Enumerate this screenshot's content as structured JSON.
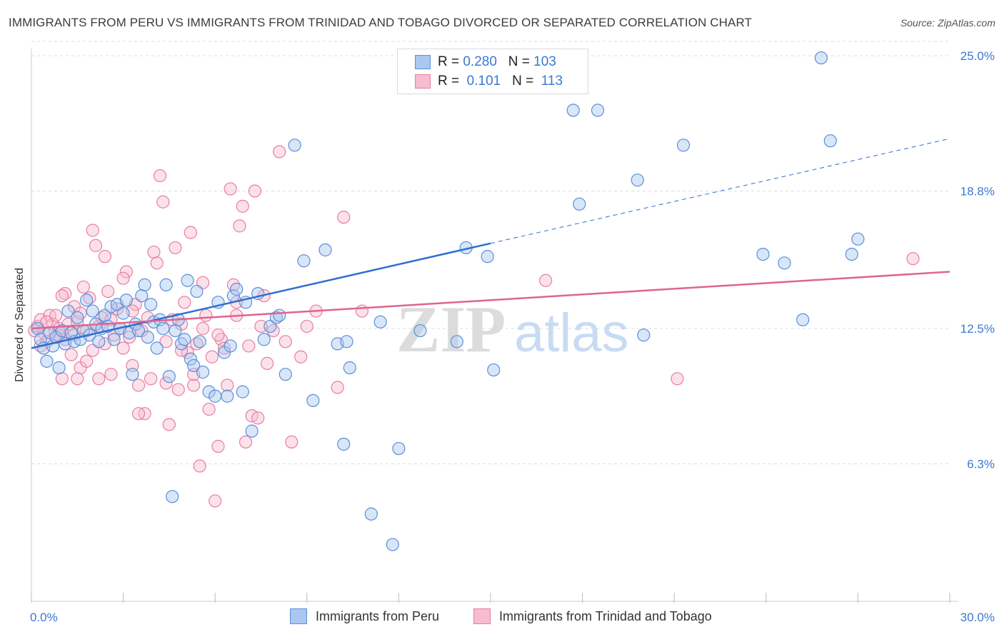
{
  "title": "IMMIGRANTS FROM PERU VS IMMIGRANTS FROM TRINIDAD AND TOBAGO DIVORCED OR SEPARATED CORRELATION CHART",
  "source": "Source: ZipAtlas.com",
  "watermark": {
    "zip": "ZIP",
    "atlas": "atlas"
  },
  "legend": {
    "rows": [
      {
        "r_label": "R =",
        "r_value": "0.280",
        "n_label": "N =",
        "n_value": "103",
        "color": "#a9c8f0",
        "border": "#5b8fd8"
      },
      {
        "r_label": "R =",
        "r_value": "0.101",
        "n_label": "N =",
        "n_value": "113",
        "color": "#f7bcd0",
        "border": "#e87da3"
      }
    ]
  },
  "bottom_legend": [
    {
      "label": "Immigrants from Peru",
      "color": "#a9c8f0",
      "border": "#5b8fd8"
    },
    {
      "label": "Immigrants from Trinidad and Tobago",
      "color": "#f7bcd0",
      "border": "#e87da3"
    }
  ],
  "chart_data": {
    "type": "scatter",
    "title": "IMMIGRANTS FROM PERU VS IMMIGRANTS FROM TRINIDAD AND TOBAGO DIVORCED OR SEPARATED CORRELATION CHART",
    "xlabel": "",
    "ylabel": "Divorced or Separated",
    "xlim": [
      0,
      30
    ],
    "ylim": [
      0,
      25
    ],
    "x_tick_labels": [
      "0.0%",
      "30.0%"
    ],
    "y_tick_labels": [
      "25.0%",
      "18.8%",
      "12.5%",
      "6.3%"
    ],
    "y_ticks": [
      25.0,
      18.8,
      12.5,
      6.3
    ],
    "grid": true,
    "series": [
      {
        "name": "Immigrants from Peru",
        "color": "#5b8fd8",
        "fill": "#a9c8f0",
        "trend": {
          "x0": 0,
          "y0": 11.6,
          "x1": 15,
          "y1": 16.4,
          "dash_x1": 30,
          "dash_y1": 21.2,
          "color": "#2f6fce"
        },
        "points": [
          [
            0.2,
            12.5
          ],
          [
            0.3,
            12.0
          ],
          [
            0.4,
            11.6
          ],
          [
            0.5,
            11.0
          ],
          [
            0.6,
            12.3
          ],
          [
            0.7,
            11.7
          ],
          [
            0.8,
            12.1
          ],
          [
            0.9,
            10.7
          ],
          [
            1.0,
            12.4
          ],
          [
            1.1,
            11.8
          ],
          [
            1.2,
            13.3
          ],
          [
            1.3,
            12.3
          ],
          [
            1.4,
            11.9
          ],
          [
            1.5,
            13.0
          ],
          [
            1.6,
            12.0
          ],
          [
            1.7,
            12.4
          ],
          [
            1.8,
            13.8
          ],
          [
            1.9,
            12.2
          ],
          [
            2.0,
            13.3
          ],
          [
            2.1,
            12.7
          ],
          [
            2.2,
            11.9
          ],
          [
            2.3,
            12.5
          ],
          [
            2.4,
            13.1
          ],
          [
            2.5,
            12.6
          ],
          [
            2.6,
            13.5
          ],
          [
            2.7,
            12.0
          ],
          [
            2.8,
            13.6
          ],
          [
            2.9,
            12.5
          ],
          [
            3.0,
            13.2
          ],
          [
            3.1,
            13.8
          ],
          [
            3.2,
            12.3
          ],
          [
            3.3,
            10.4
          ],
          [
            3.4,
            12.7
          ],
          [
            3.5,
            12.4
          ],
          [
            3.6,
            14.0
          ],
          [
            3.7,
            14.5
          ],
          [
            3.8,
            12.1
          ],
          [
            3.9,
            13.6
          ],
          [
            4.0,
            12.8
          ],
          [
            4.1,
            11.6
          ],
          [
            4.2,
            12.9
          ],
          [
            4.3,
            12.5
          ],
          [
            4.4,
            14.5
          ],
          [
            4.5,
            10.3
          ],
          [
            4.6,
            4.8
          ],
          [
            4.7,
            12.4
          ],
          [
            4.8,
            12.9
          ],
          [
            4.9,
            11.8
          ],
          [
            5.0,
            12.0
          ],
          [
            5.1,
            14.7
          ],
          [
            5.2,
            11.1
          ],
          [
            5.3,
            10.8
          ],
          [
            5.4,
            14.2
          ],
          [
            5.5,
            11.9
          ],
          [
            5.6,
            10.5
          ],
          [
            5.8,
            9.6
          ],
          [
            6.0,
            9.4
          ],
          [
            6.1,
            13.7
          ],
          [
            6.3,
            11.4
          ],
          [
            6.4,
            9.4
          ],
          [
            6.5,
            11.7
          ],
          [
            6.6,
            14.0
          ],
          [
            6.7,
            14.3
          ],
          [
            6.9,
            9.6
          ],
          [
            7.0,
            13.7
          ],
          [
            7.2,
            7.8
          ],
          [
            7.4,
            14.1
          ],
          [
            7.6,
            12.0
          ],
          [
            7.8,
            12.6
          ],
          [
            8.0,
            13.0
          ],
          [
            8.1,
            13.1
          ],
          [
            8.3,
            10.4
          ],
          [
            8.6,
            20.9
          ],
          [
            8.9,
            15.6
          ],
          [
            9.2,
            9.2
          ],
          [
            9.6,
            16.1
          ],
          [
            10.0,
            11.8
          ],
          [
            10.2,
            7.2
          ],
          [
            10.3,
            11.9
          ],
          [
            10.4,
            10.7
          ],
          [
            11.1,
            4.0
          ],
          [
            11.4,
            12.8
          ],
          [
            11.8,
            2.6
          ],
          [
            12.0,
            7.0
          ],
          [
            12.7,
            12.4
          ],
          [
            13.9,
            11.9
          ],
          [
            14.2,
            16.2
          ],
          [
            14.9,
            15.8
          ],
          [
            15.1,
            10.6
          ],
          [
            16.4,
            24.2
          ],
          [
            17.7,
            22.5
          ],
          [
            17.9,
            18.2
          ],
          [
            18.5,
            22.5
          ],
          [
            19.8,
            19.3
          ],
          [
            20.0,
            12.2
          ],
          [
            21.3,
            20.9
          ],
          [
            23.9,
            15.9
          ],
          [
            24.6,
            15.5
          ],
          [
            25.2,
            12.9
          ],
          [
            25.8,
            24.9
          ],
          [
            26.1,
            21.1
          ],
          [
            26.8,
            15.9
          ],
          [
            27.0,
            16.6
          ]
        ]
      },
      {
        "name": "Immigrants from Trinidad and Tobago",
        "color": "#e87da3",
        "fill": "#f7bcd0",
        "trend": {
          "x0": 0,
          "y0": 12.5,
          "x1": 30,
          "y1": 15.1,
          "color": "#e0648f"
        },
        "points": [
          [
            0.1,
            12.4
          ],
          [
            0.2,
            12.6
          ],
          [
            0.3,
            12.9
          ],
          [
            0.4,
            12.3
          ],
          [
            0.5,
            11.9
          ],
          [
            0.6,
            13.1
          ],
          [
            0.7,
            12.7
          ],
          [
            0.8,
            12.1
          ],
          [
            0.9,
            12.5
          ],
          [
            1.0,
            10.2
          ],
          [
            1.1,
            14.1
          ],
          [
            1.2,
            12.7
          ],
          [
            1.3,
            11.3
          ],
          [
            1.4,
            13.5
          ],
          [
            1.5,
            12.8
          ],
          [
            1.6,
            10.7
          ],
          [
            1.7,
            14.4
          ],
          [
            1.8,
            12.4
          ],
          [
            1.9,
            13.9
          ],
          [
            2.0,
            11.5
          ],
          [
            2.1,
            16.3
          ],
          [
            2.2,
            12.6
          ],
          [
            2.3,
            13.0
          ],
          [
            2.4,
            11.8
          ],
          [
            2.5,
            14.2
          ],
          [
            2.6,
            10.4
          ],
          [
            2.7,
            12.2
          ],
          [
            2.8,
            13.4
          ],
          [
            2.9,
            12.5
          ],
          [
            3.0,
            11.6
          ],
          [
            3.1,
            15.1
          ],
          [
            3.2,
            12.1
          ],
          [
            3.3,
            10.8
          ],
          [
            3.4,
            13.6
          ],
          [
            3.5,
            9.9
          ],
          [
            3.6,
            12.4
          ],
          [
            3.7,
            8.6
          ],
          [
            3.8,
            13.0
          ],
          [
            3.9,
            10.2
          ],
          [
            4.0,
            16.0
          ],
          [
            4.1,
            15.5
          ],
          [
            4.2,
            19.5
          ],
          [
            4.3,
            18.3
          ],
          [
            4.4,
            11.9
          ],
          [
            4.5,
            8.1
          ],
          [
            4.6,
            12.9
          ],
          [
            4.7,
            16.2
          ],
          [
            4.8,
            9.7
          ],
          [
            4.9,
            12.7
          ],
          [
            5.0,
            13.7
          ],
          [
            5.1,
            11.4
          ],
          [
            5.2,
            16.9
          ],
          [
            5.3,
            9.9
          ],
          [
            5.4,
            11.8
          ],
          [
            5.5,
            6.2
          ],
          [
            5.6,
            12.5
          ],
          [
            5.7,
            13.1
          ],
          [
            5.8,
            8.8
          ],
          [
            5.9,
            11.2
          ],
          [
            6.0,
            4.6
          ],
          [
            6.1,
            7.1
          ],
          [
            6.2,
            12.0
          ],
          [
            6.3,
            11.6
          ],
          [
            6.4,
            9.9
          ],
          [
            6.5,
            18.9
          ],
          [
            6.6,
            14.5
          ],
          [
            6.7,
            13.7
          ],
          [
            6.8,
            17.2
          ],
          [
            6.9,
            18.1
          ],
          [
            7.0,
            7.3
          ],
          [
            7.1,
            11.7
          ],
          [
            7.2,
            8.5
          ],
          [
            7.3,
            18.8
          ],
          [
            7.4,
            8.4
          ],
          [
            7.5,
            12.6
          ],
          [
            7.6,
            14.0
          ],
          [
            7.7,
            10.9
          ],
          [
            7.9,
            12.4
          ],
          [
            8.1,
            20.6
          ],
          [
            8.3,
            11.9
          ],
          [
            8.5,
            7.3
          ],
          [
            8.8,
            11.2
          ],
          [
            9.0,
            12.6
          ],
          [
            9.3,
            13.3
          ],
          [
            10.0,
            9.8
          ],
          [
            10.2,
            17.6
          ],
          [
            10.8,
            13.3
          ],
          [
            16.8,
            14.7
          ],
          [
            21.1,
            10.2
          ],
          [
            28.8,
            15.7
          ],
          [
            2.0,
            17.0
          ],
          [
            2.4,
            15.8
          ],
          [
            3.5,
            8.6
          ],
          [
            2.2,
            10.2
          ],
          [
            1.0,
            14.0
          ],
          [
            1.4,
            12.2
          ],
          [
            1.6,
            13.2
          ],
          [
            1.8,
            11.0
          ],
          [
            3.0,
            14.8
          ],
          [
            0.5,
            12.8
          ],
          [
            0.8,
            13.1
          ],
          [
            1.1,
            12.0
          ],
          [
            4.4,
            10.0
          ],
          [
            5.6,
            14.6
          ],
          [
            6.1,
            12.2
          ],
          [
            6.7,
            13.1
          ],
          [
            3.3,
            13.3
          ],
          [
            2.6,
            12.9
          ],
          [
            1.5,
            10.2
          ],
          [
            4.9,
            11.5
          ],
          [
            5.3,
            10.4
          ],
          [
            0.3,
            11.7
          ],
          [
            0.9,
            12.2
          ]
        ]
      }
    ]
  }
}
